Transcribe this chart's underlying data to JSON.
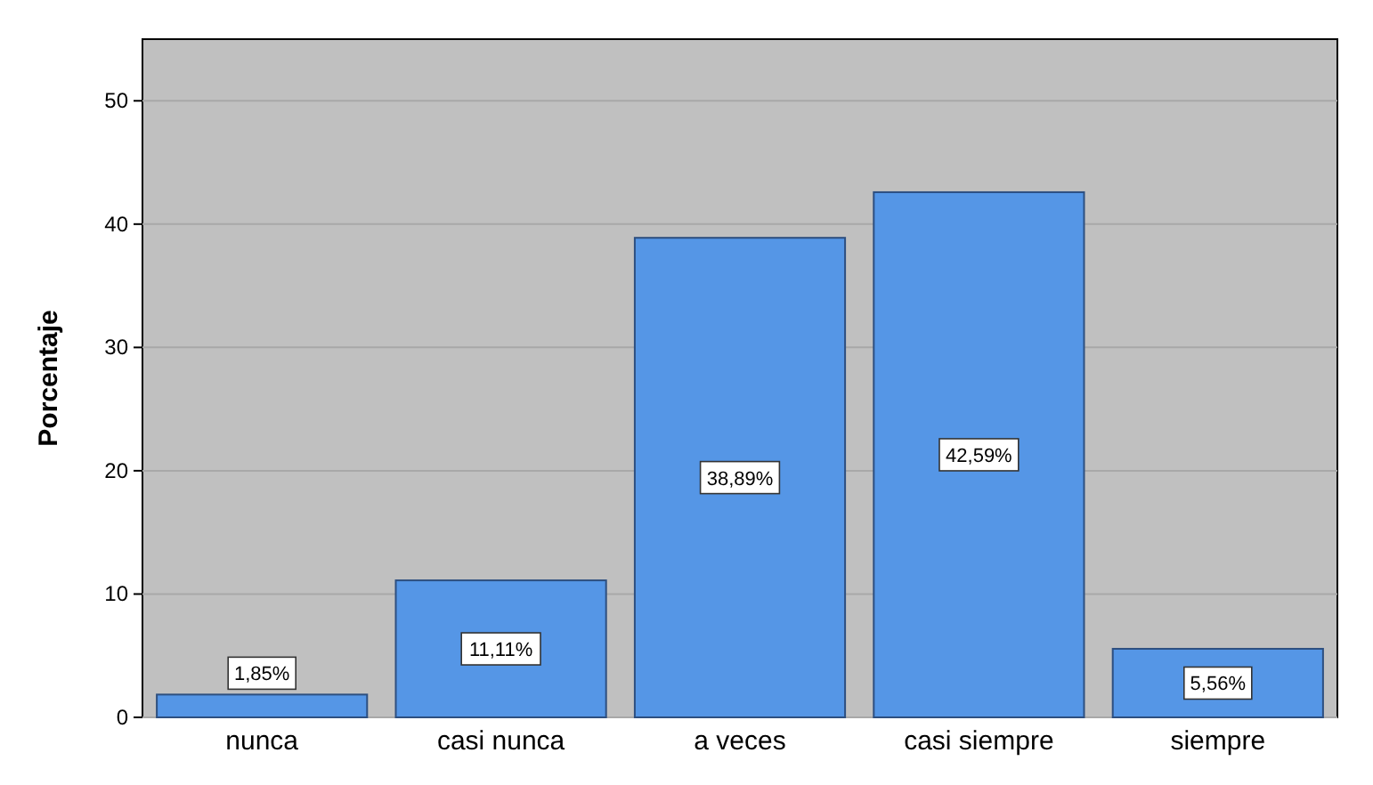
{
  "chart_data": {
    "type": "bar",
    "ylabel": "Porcentaje",
    "categories": [
      "nunca",
      "casi nunca",
      "a veces",
      "casi siempre",
      "siempre"
    ],
    "values": [
      1.85,
      11.11,
      38.89,
      42.59,
      5.56
    ],
    "value_labels": [
      "1,85%",
      "11,11%",
      "38,89%",
      "42,59%",
      "5,56%"
    ],
    "color": "#5596e6",
    "ylim": [
      0,
      55
    ],
    "yticks": [
      0,
      10,
      20,
      30,
      40,
      50
    ],
    "grid": "y"
  }
}
